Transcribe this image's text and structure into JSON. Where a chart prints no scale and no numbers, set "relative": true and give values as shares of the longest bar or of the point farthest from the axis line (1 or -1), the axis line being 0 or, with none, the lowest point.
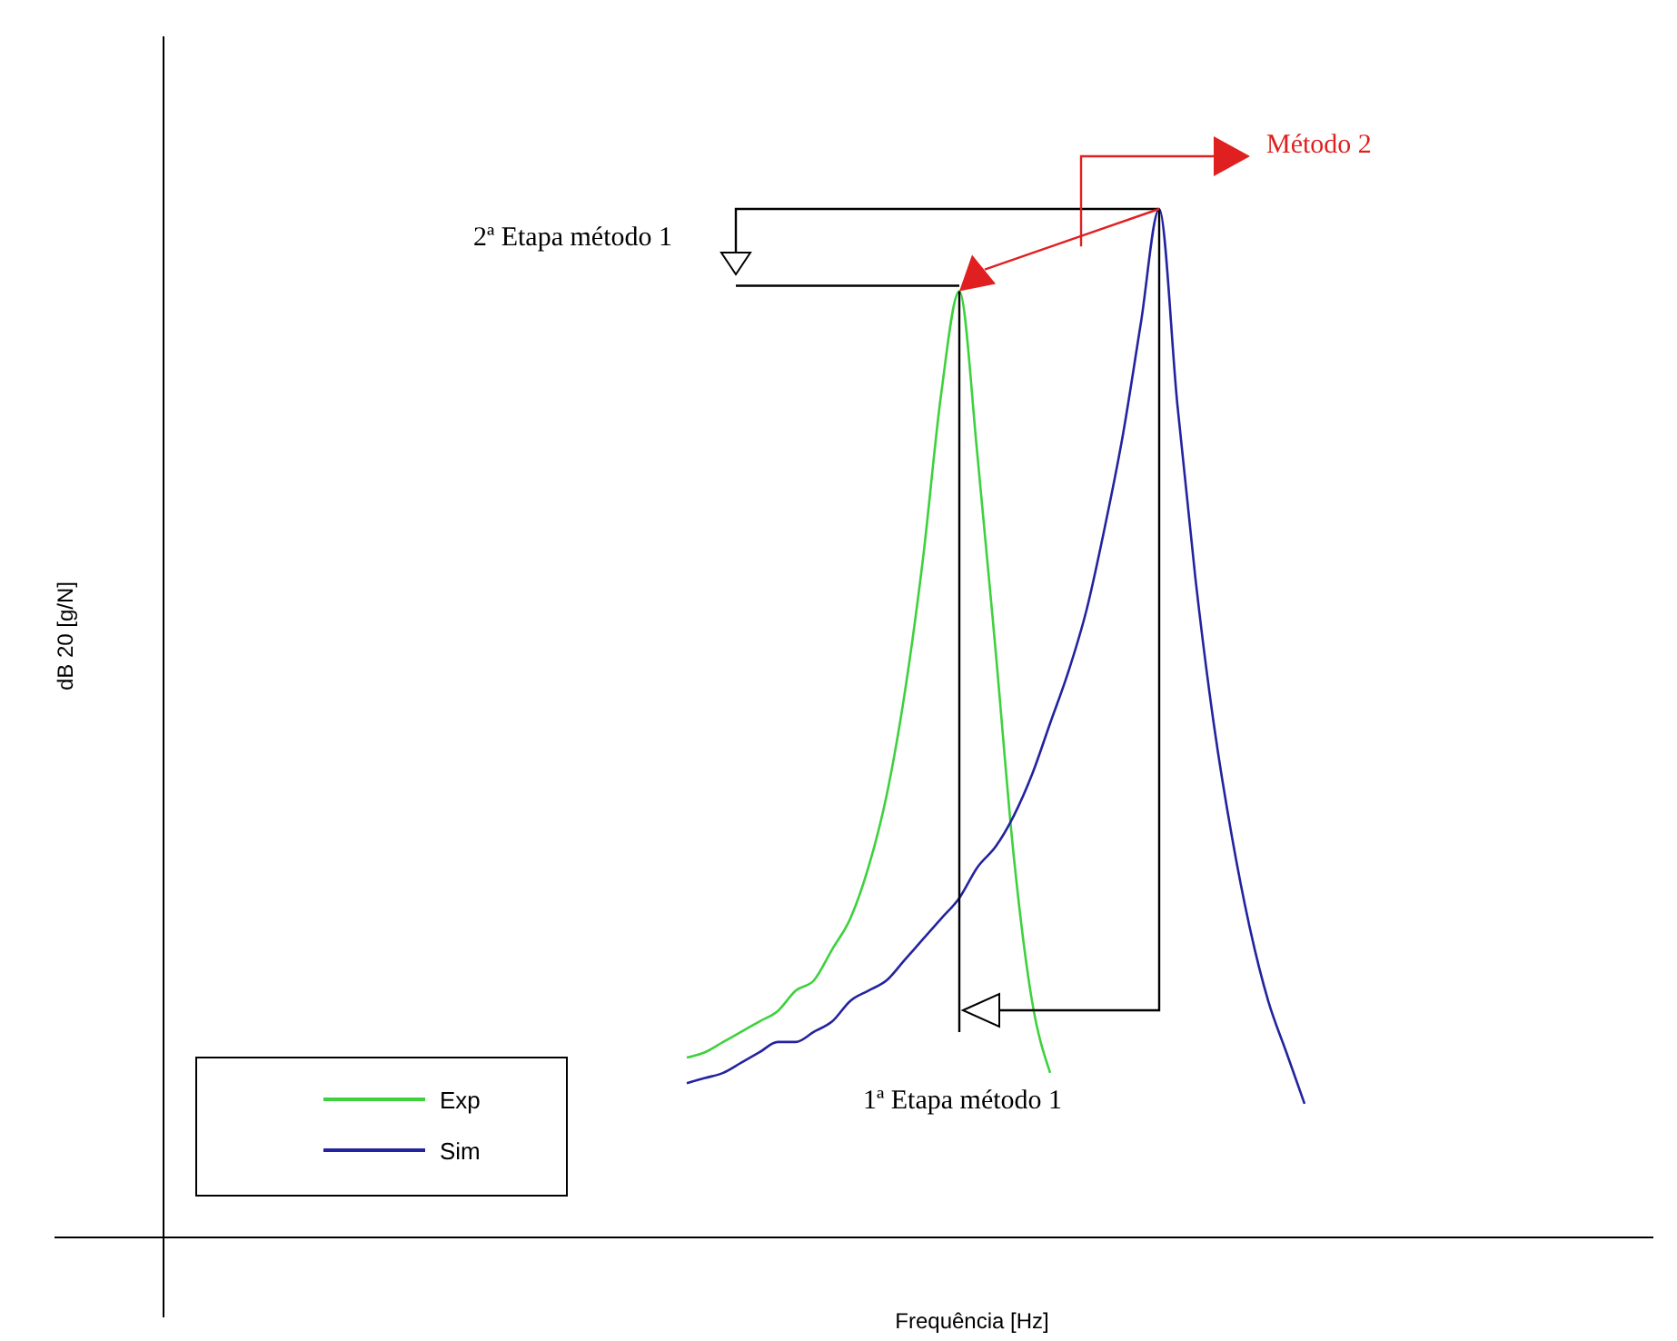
{
  "chart_data": {
    "type": "line",
    "relative": true,
    "xlabel": "Frequência [Hz]",
    "ylabel": "dB 20 [g/N]",
    "legend": "bottom left",
    "categories": [
      null,
      null,
      null,
      null,
      null,
      null,
      null,
      null,
      null,
      null,
      null,
      null,
      null,
      null,
      null,
      null,
      null,
      null,
      null,
      null,
      null,
      null,
      null,
      null,
      null,
      null,
      null,
      null,
      null,
      null,
      null,
      null,
      null,
      null,
      null,
      null,
      null,
      null,
      null,
      null,
      null,
      null,
      null,
      null,
      null,
      null,
      null,
      null,
      null,
      null,
      null,
      null,
      null,
      null,
      null,
      null,
      null,
      null,
      null,
      null,
      null,
      null,
      null
    ],
    "series": [
      {
        "name": "Exp",
        "color": "#3ed13e",
        "values": [
          null,
          null,
          null,
          null,
          null,
          null,
          null,
          null,
          null,
          null,
          null,
          null,
          null,
          null,
          null,
          null,
          null,
          null,
          null,
          null,
          null,
          null,
          null,
          null,
          null,
          null,
          null,
          null,
          0.175,
          0.18,
          0.19,
          0.2,
          0.21,
          0.22,
          0.24,
          0.25,
          0.28,
          0.31,
          0.36,
          0.43,
          0.53,
          0.66,
          0.82,
          0.92,
          0.76,
          0.57,
          0.37,
          0.23,
          0.16,
          null,
          null,
          null,
          null,
          null,
          null,
          null,
          null,
          null,
          null,
          null,
          null,
          null,
          null
        ]
      },
      {
        "name": "Sim",
        "color": "#2323a0",
        "values": [
          null,
          null,
          null,
          null,
          null,
          null,
          null,
          null,
          null,
          null,
          null,
          null,
          null,
          null,
          null,
          null,
          null,
          null,
          null,
          null,
          null,
          null,
          null,
          null,
          null,
          null,
          null,
          null,
          0.15,
          0.155,
          0.16,
          0.17,
          0.18,
          0.19,
          0.19,
          0.2,
          0.21,
          0.23,
          0.24,
          0.25,
          0.27,
          0.29,
          0.31,
          0.33,
          0.36,
          0.38,
          0.41,
          0.45,
          0.5,
          0.55,
          0.61,
          0.69,
          0.78,
          0.89,
          1,
          0.81,
          0.64,
          0.5,
          0.39,
          0.3,
          0.23,
          0.18,
          0.13
        ]
      }
    ],
    "annotations": [
      "Método 2",
      "2ª Etapa método 1",
      "1ª Etapa método 1"
    ]
  }
}
